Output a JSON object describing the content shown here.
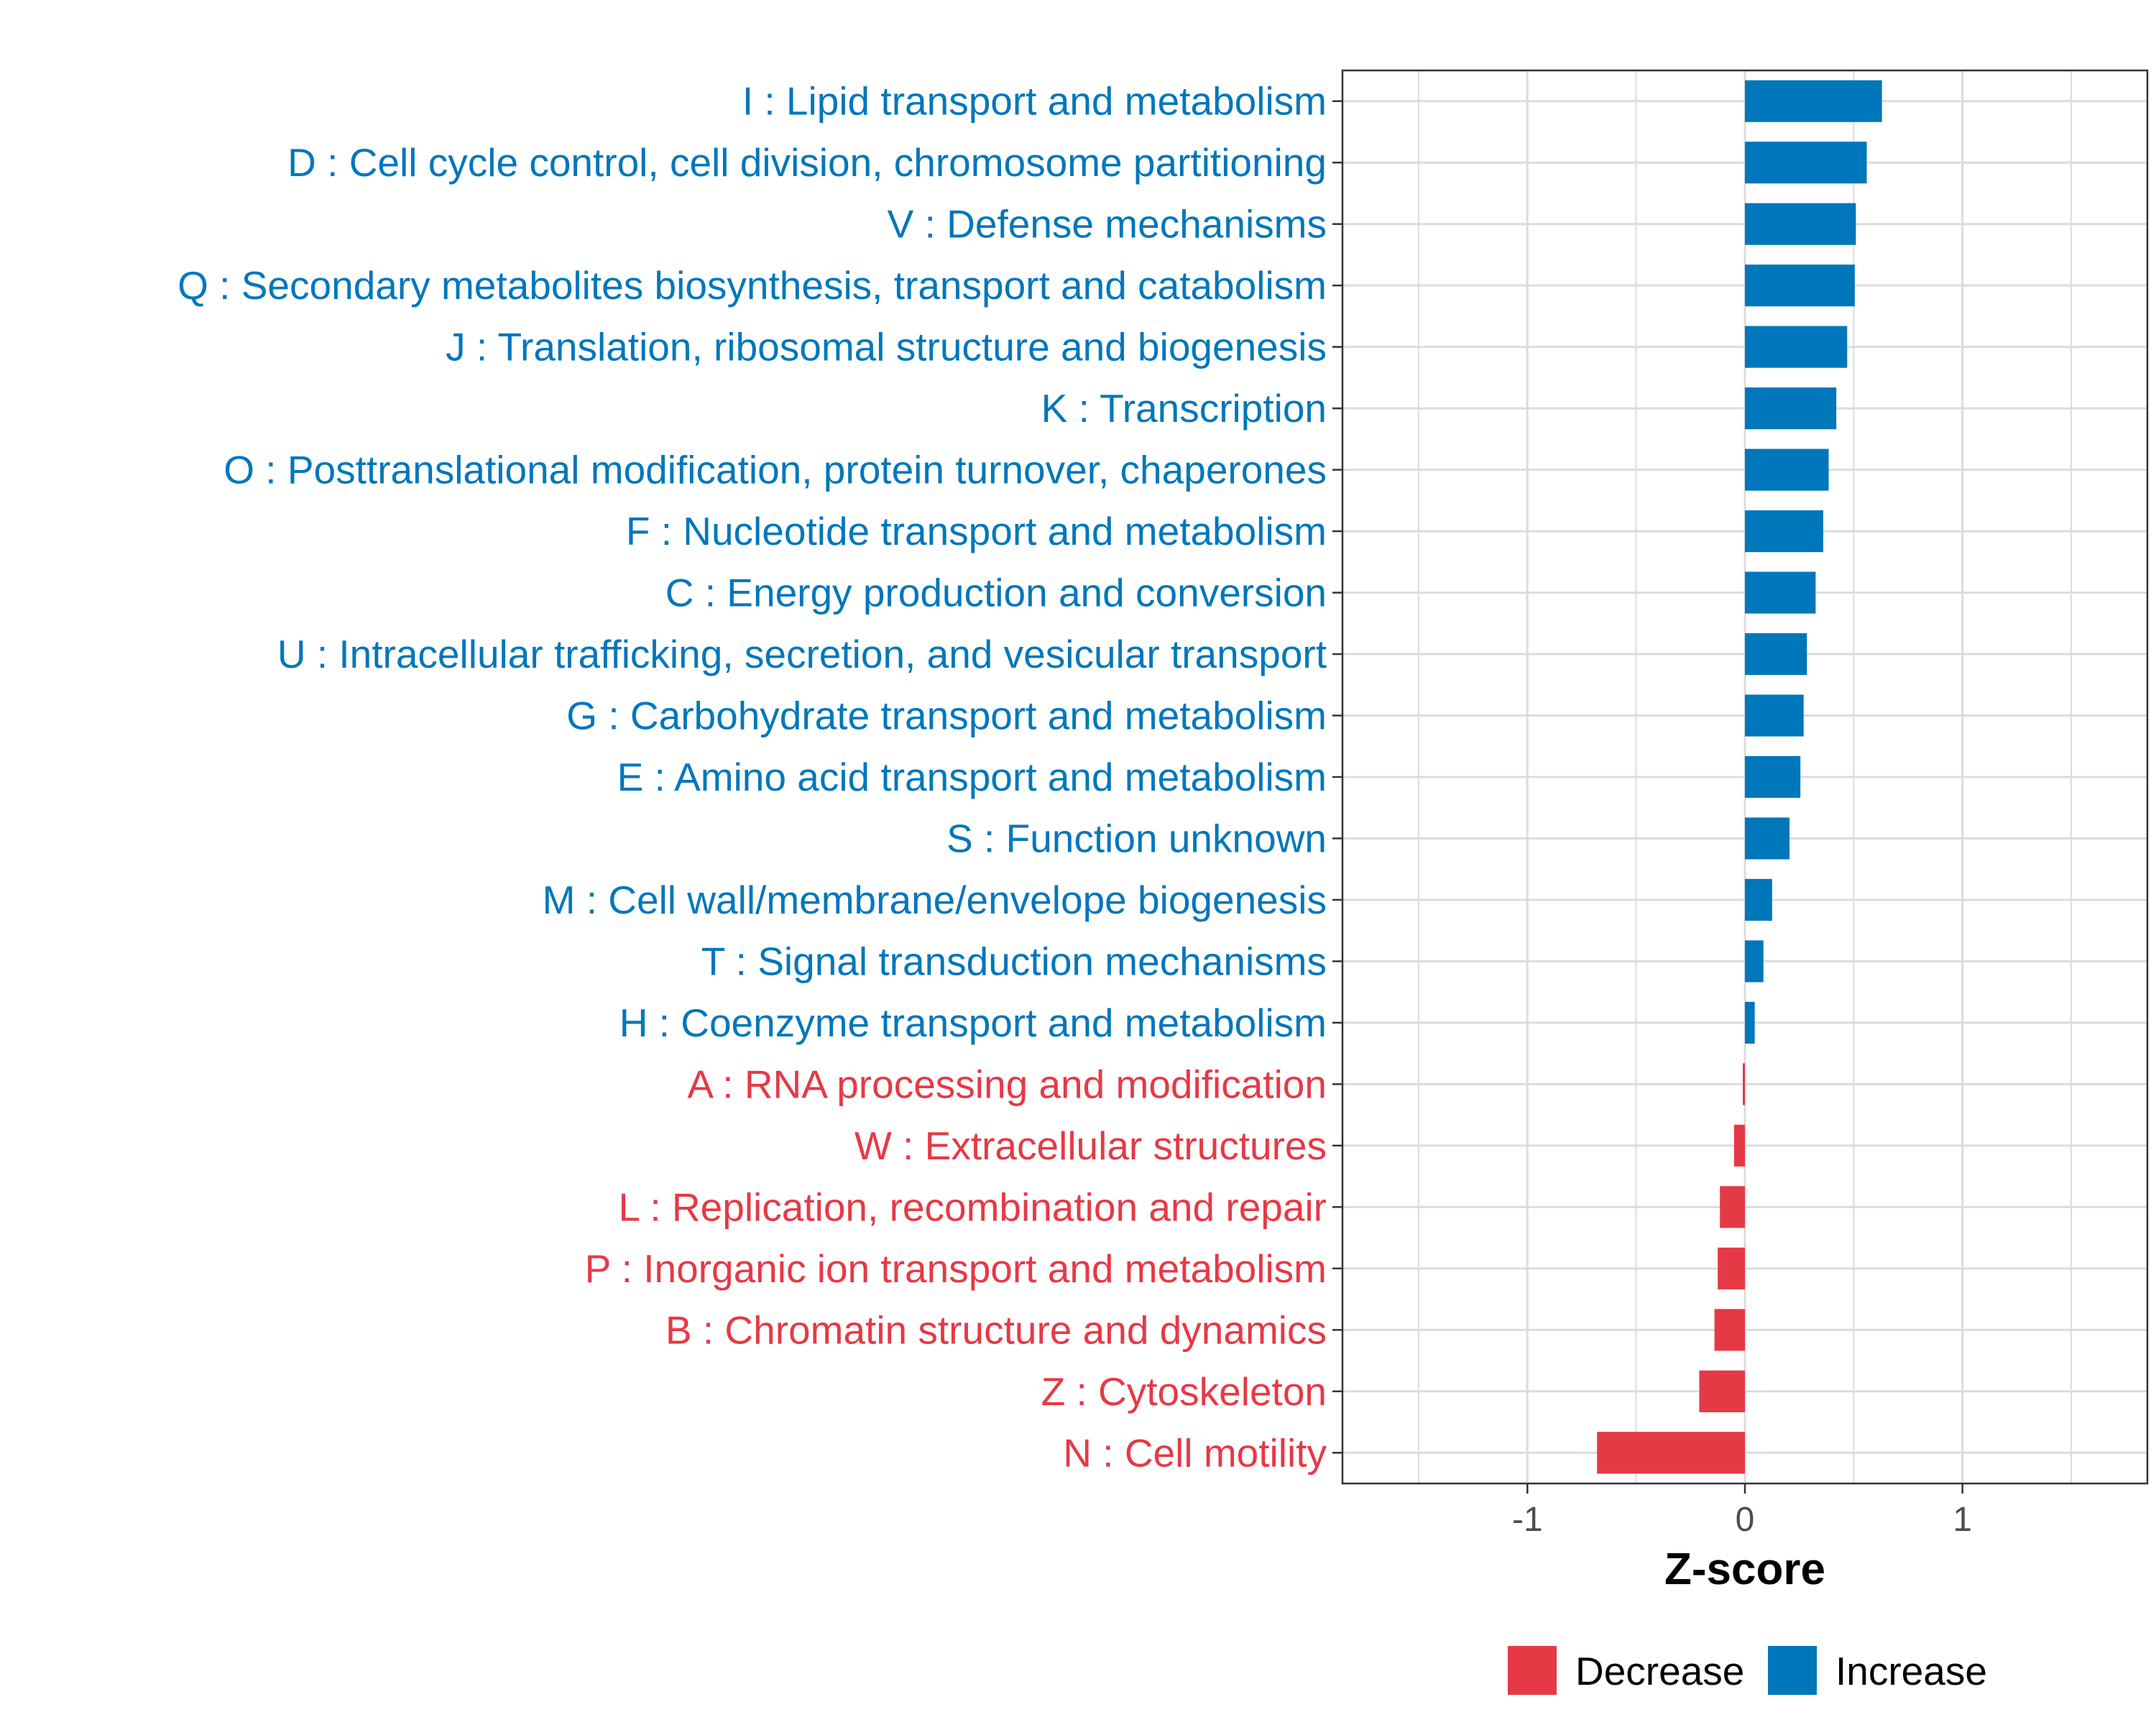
{
  "chart_data": {
    "type": "bar",
    "orientation": "horizontal",
    "title": "",
    "xlabel": "Z-score",
    "ylabel": "",
    "xlim": [
      -1.85,
      1.85
    ],
    "xticks": [
      -1,
      0,
      1
    ],
    "xtick_labels": [
      "-1",
      "0",
      "1"
    ],
    "grid": true,
    "categories": [
      "I : Lipid transport and metabolism",
      "D : Cell cycle control, cell division, chromosome partitioning",
      "V : Defense mechanisms",
      "Q : Secondary metabolites biosynthesis, transport and catabolism",
      "J : Translation, ribosomal structure and biogenesis",
      "K : Transcription",
      "O : Posttranslational modification, protein turnover, chaperones",
      "F : Nucleotide transport and metabolism",
      "C : Energy production and conversion",
      "U : Intracellular trafficking, secretion, and vesicular transport",
      "G : Carbohydrate transport and metabolism",
      "E : Amino acid transport and metabolism",
      "S : Function unknown",
      "M : Cell wall/membrane/envelope biogenesis",
      "T : Signal transduction mechanisms",
      "H : Coenzyme transport and metabolism",
      "A : RNA processing and modification",
      "W : Extracellular structures",
      "L : Replication, recombination and repair",
      "P : Inorganic ion transport and metabolism",
      "B : Chromatin structure and dynamics",
      "Z : Cytoskeleton",
      "N : Cell motility"
    ],
    "values": [
      0.63,
      0.56,
      0.51,
      0.505,
      0.47,
      0.42,
      0.385,
      0.36,
      0.325,
      0.285,
      0.27,
      0.255,
      0.205,
      0.125,
      0.085,
      0.045,
      -0.01,
      -0.05,
      -0.115,
      -0.125,
      -0.14,
      -0.21,
      -0.68
    ],
    "groups": [
      "Increase",
      "Increase",
      "Increase",
      "Increase",
      "Increase",
      "Increase",
      "Increase",
      "Increase",
      "Increase",
      "Increase",
      "Increase",
      "Increase",
      "Increase",
      "Increase",
      "Increase",
      "Increase",
      "Decrease",
      "Decrease",
      "Decrease",
      "Decrease",
      "Decrease",
      "Decrease",
      "Decrease"
    ],
    "colors": {
      "Increase": "#0077BB",
      "Decrease": "#E63946"
    },
    "legend": {
      "position": "bottom",
      "entries": [
        {
          "name": "Decrease",
          "color": "#E63946"
        },
        {
          "name": "Increase",
          "color": "#0077BB"
        }
      ]
    }
  }
}
